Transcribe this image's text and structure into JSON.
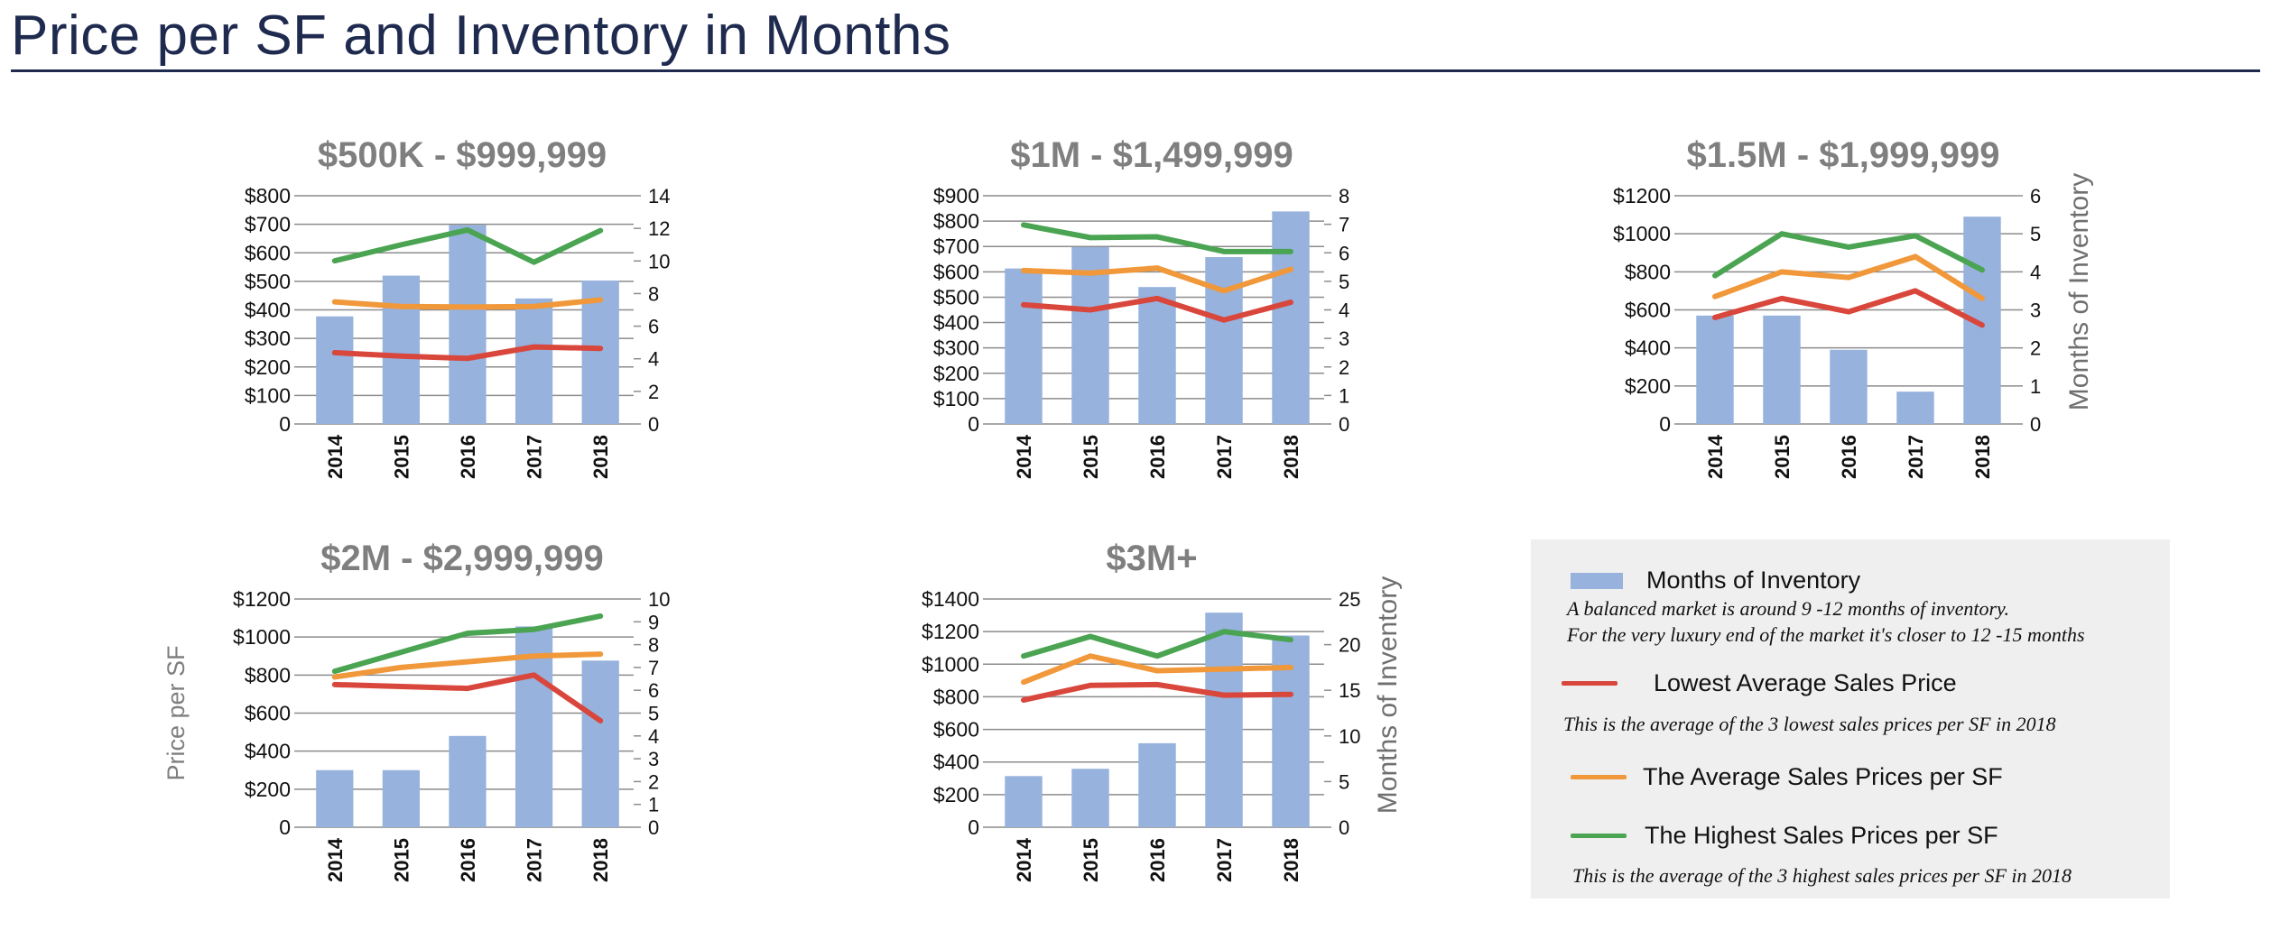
{
  "page": {
    "title": "Price per SF and Inventory in Months"
  },
  "colors": {
    "title": "#1f2a4f",
    "bar": "#96b2dd",
    "lowest": "#d9473c",
    "average": "#f0983a",
    "highest": "#4aa452",
    "chart_title": "#7f7f7f",
    "grid": "#8c8c8c"
  },
  "legend": {
    "items": [
      {
        "label": "Months of Inventory",
        "kind": "bar",
        "color": "#96b2dd"
      },
      {
        "label": "Lowest Average Sales Price",
        "kind": "line",
        "color": "#d9473c"
      },
      {
        "label": "The Average Sales Prices per SF",
        "kind": "line",
        "color": "#f0983a"
      },
      {
        "label": "The Highest Sales Prices per SF",
        "kind": "line",
        "color": "#4aa452"
      }
    ],
    "notes": {
      "inventory_line1": "A balanced market is around 9 -12 months of inventory.",
      "inventory_line2": "For the very luxury end of the market it's closer to 12 -15 months",
      "lowest": "This is the average of the 3 lowest  sales prices per SF in 2018",
      "highest": "This is the average of the 3 highest  sales prices per SF in 2018"
    }
  },
  "chart_data": [
    {
      "type": "bar",
      "title": "$500K - $999,999",
      "categories": [
        "2014",
        "2015",
        "2016",
        "2017",
        "2018"
      ],
      "ylabel": "",
      "y2label": "",
      "ylim": [
        0,
        800
      ],
      "y_ticks": [
        "0",
        "$100",
        "$200",
        "$300",
        "$400",
        "$500",
        "$600",
        "$700",
        "$800"
      ],
      "y2lim": [
        0,
        14
      ],
      "y2_ticks": [
        "0",
        "2",
        "4",
        "6",
        "8",
        "10",
        "12",
        "14"
      ],
      "series": [
        {
          "name": "Months of Inventory",
          "kind": "bar",
          "axis": "right",
          "values": [
            6.6,
            9.1,
            12.2,
            7.7,
            8.8
          ]
        },
        {
          "name": "Lowest Average Sales Price",
          "kind": "line",
          "axis": "left",
          "values": [
            250,
            238,
            230,
            270,
            265
          ]
        },
        {
          "name": "The Average Sales Prices per SF",
          "kind": "line",
          "axis": "left",
          "values": [
            428,
            412,
            410,
            412,
            435
          ]
        },
        {
          "name": "The Highest Sales Prices per SF",
          "kind": "line",
          "axis": "left",
          "values": [
            572,
            628,
            680,
            567,
            678
          ]
        }
      ]
    },
    {
      "type": "bar",
      "title": "$1M - $1,499,999",
      "categories": [
        "2014",
        "2015",
        "2016",
        "2017",
        "2018"
      ],
      "ylabel": "",
      "y2label": "",
      "ylim": [
        0,
        900
      ],
      "y_ticks": [
        "0",
        "$100",
        "$200",
        "$300",
        "$400",
        "$500",
        "$600",
        "$700",
        "$800",
        "$900"
      ],
      "y2lim": [
        0,
        8
      ],
      "y2_ticks": [
        "0",
        "1",
        "2",
        "3",
        "4",
        "5",
        "6",
        "7",
        "8"
      ],
      "series": [
        {
          "name": "Months of Inventory",
          "kind": "bar",
          "axis": "right",
          "values": [
            5.45,
            6.2,
            4.8,
            5.85,
            7.45
          ]
        },
        {
          "name": "Lowest Average Sales Price",
          "kind": "line",
          "axis": "left",
          "values": [
            470,
            450,
            495,
            410,
            480
          ]
        },
        {
          "name": "The Average Sales Prices per SF",
          "kind": "line",
          "axis": "left",
          "values": [
            605,
            595,
            615,
            525,
            610
          ]
        },
        {
          "name": "The Highest Sales Prices per SF",
          "kind": "line",
          "axis": "left",
          "values": [
            785,
            735,
            738,
            680,
            680
          ]
        }
      ]
    },
    {
      "type": "bar",
      "title": "$1.5M - $1,999,999",
      "categories": [
        "2014",
        "2015",
        "2016",
        "2017",
        "2018"
      ],
      "ylabel": "",
      "y2label": "Months of Inventory",
      "ylim": [
        0,
        1200
      ],
      "y_ticks": [
        "0",
        "$200",
        "$400",
        "$600",
        "$800",
        "$1000",
        "$1200"
      ],
      "y2lim": [
        0,
        6
      ],
      "y2_ticks": [
        "0",
        "1",
        "2",
        "3",
        "4",
        "5",
        "6"
      ],
      "series": [
        {
          "name": "Months of Inventory",
          "kind": "bar",
          "axis": "right",
          "values": [
            2.85,
            2.85,
            1.95,
            0.85,
            5.45
          ]
        },
        {
          "name": "Lowest Average Sales Price",
          "kind": "line",
          "axis": "left",
          "values": [
            560,
            660,
            590,
            700,
            520
          ]
        },
        {
          "name": "The Average Sales Prices per SF",
          "kind": "line",
          "axis": "left",
          "values": [
            670,
            800,
            770,
            880,
            660
          ]
        },
        {
          "name": "The Highest Sales Prices per SF",
          "kind": "line",
          "axis": "left",
          "values": [
            780,
            1000,
            930,
            990,
            810
          ]
        }
      ]
    },
    {
      "type": "bar",
      "title": "$2M - $2,999,999",
      "categories": [
        "2014",
        "2015",
        "2016",
        "2017",
        "2018"
      ],
      "ylabel": "Price per SF",
      "y2label": "",
      "ylim": [
        0,
        1200
      ],
      "y_ticks": [
        "0",
        "$200",
        "$400",
        "$600",
        "$800",
        "$1000",
        "$1200"
      ],
      "y2lim": [
        0,
        10
      ],
      "y2_ticks": [
        "0",
        "1",
        "2",
        "3",
        "4",
        "5",
        "6",
        "7",
        "8",
        "9",
        "10"
      ],
      "series": [
        {
          "name": "Months of Inventory",
          "kind": "bar",
          "axis": "right",
          "values": [
            2.5,
            2.5,
            4.0,
            8.8,
            7.3
          ]
        },
        {
          "name": "Lowest Average Sales Price",
          "kind": "line",
          "axis": "left",
          "values": [
            750,
            740,
            730,
            800,
            560
          ]
        },
        {
          "name": "The Average Sales Prices per SF",
          "kind": "line",
          "axis": "left",
          "values": [
            790,
            840,
            870,
            900,
            910
          ]
        },
        {
          "name": "The Highest Sales Prices per SF",
          "kind": "line",
          "axis": "left",
          "values": [
            820,
            920,
            1020,
            1040,
            1110
          ]
        }
      ]
    },
    {
      "type": "bar",
      "title": "$3M+",
      "categories": [
        "2014",
        "2015",
        "2016",
        "2017",
        "2018"
      ],
      "ylabel": "",
      "y2label": "Months of Inventory",
      "ylim": [
        0,
        1400
      ],
      "y_ticks": [
        "0",
        "$200",
        "$400",
        "$600",
        "$800",
        "$1000",
        "$1200",
        "$1400"
      ],
      "y2lim": [
        0,
        25
      ],
      "y2_ticks": [
        "0",
        "5",
        "10",
        "15",
        "20",
        "25"
      ],
      "series": [
        {
          "name": "Months of Inventory",
          "kind": "bar",
          "axis": "right",
          "values": [
            5.6,
            6.4,
            9.2,
            23.5,
            21.0
          ]
        },
        {
          "name": "Lowest Average Sales Price",
          "kind": "line",
          "axis": "left",
          "values": [
            780,
            870,
            875,
            810,
            815
          ]
        },
        {
          "name": "The Average Sales Prices per SF",
          "kind": "line",
          "axis": "left",
          "values": [
            890,
            1050,
            960,
            970,
            980
          ]
        },
        {
          "name": "The Highest Sales Prices per SF",
          "kind": "line",
          "axis": "left",
          "values": [
            1050,
            1170,
            1050,
            1200,
            1150
          ]
        }
      ]
    }
  ]
}
